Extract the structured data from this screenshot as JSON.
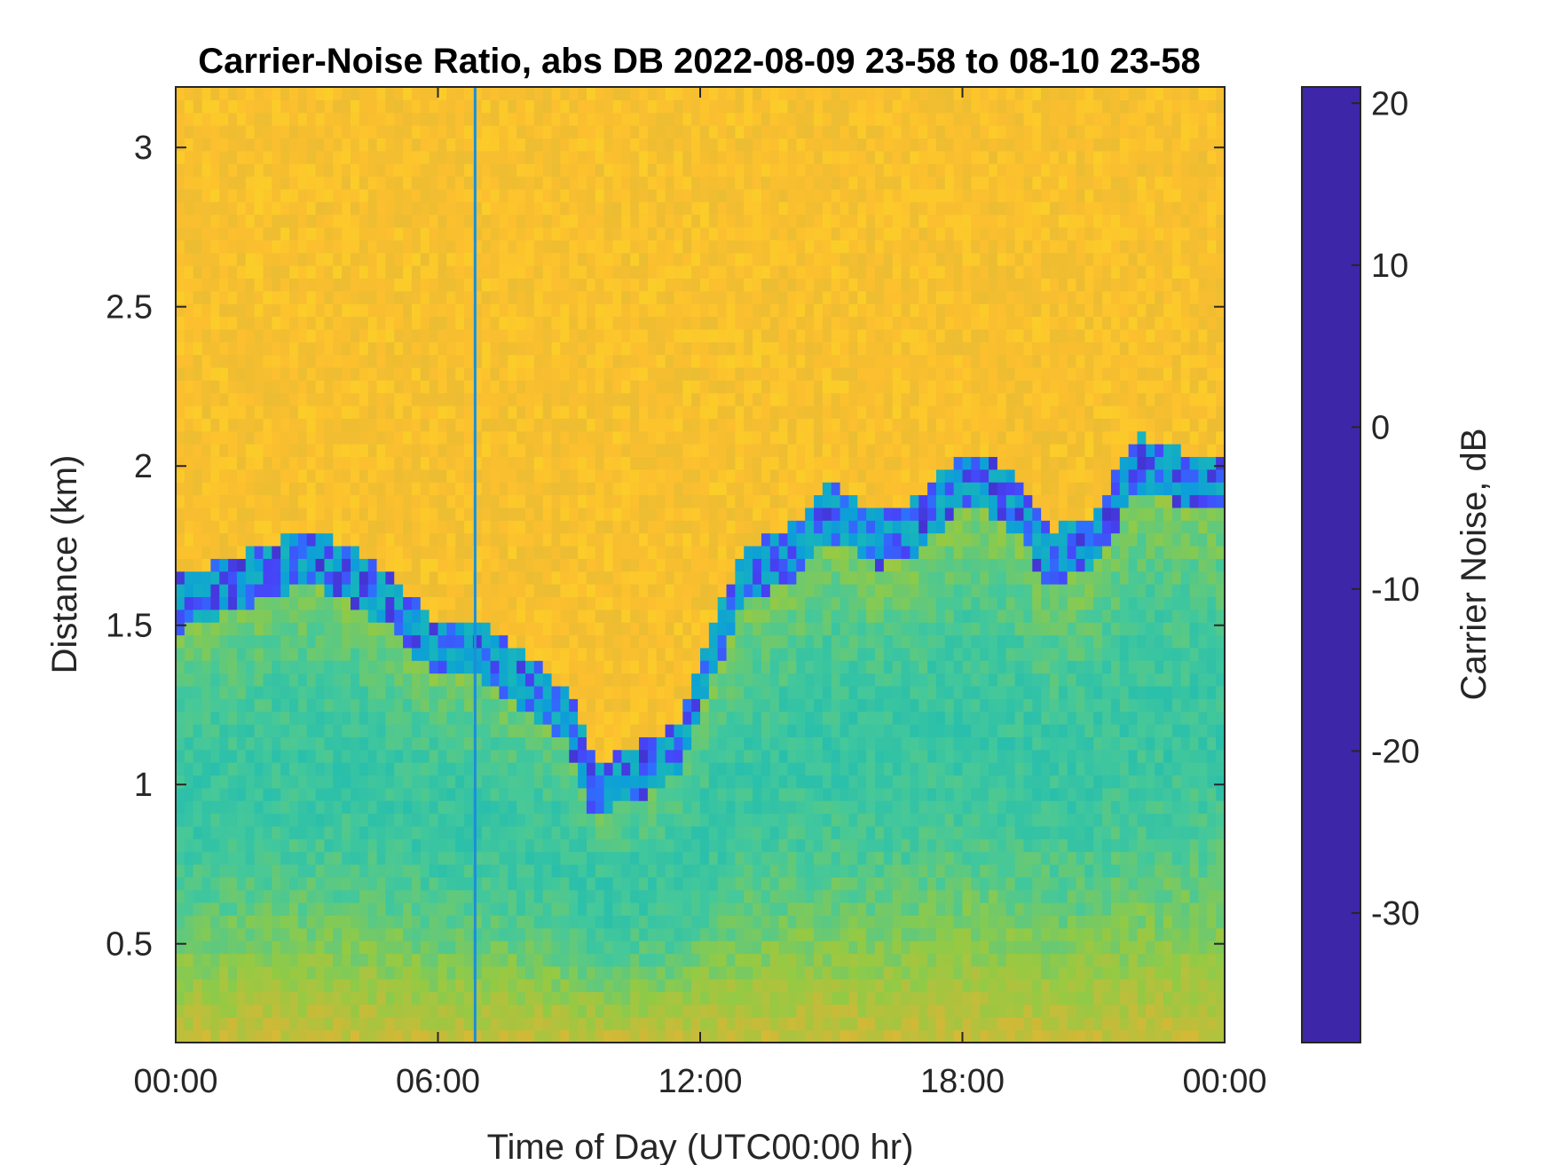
{
  "chart_data": {
    "type": "heatmap",
    "title": "Carrier-Noise Ratio, abs DB 2022-08-09 23-58 to 08-10 23-58",
    "xlabel": "Time of Day (UTC00:00 hr)",
    "ylabel": "Distance (km)",
    "colorbar_label": "Carrier Noise, dB",
    "xlim": [
      0,
      24
    ],
    "ylim": [
      0.19,
      3.19
    ],
    "clim": [
      -38,
      21
    ],
    "x_ticks": [
      0,
      6,
      12,
      18,
      24
    ],
    "x_tick_labels": [
      "00:00",
      "06:00",
      "12:00",
      "18:00",
      "00:00"
    ],
    "y_ticks": [
      0.5,
      1,
      1.5,
      2,
      2.5,
      3
    ],
    "y_tick_labels": [
      "0.5",
      "1",
      "1.5",
      "2",
      "2.5",
      "3"
    ],
    "colorbar_ticks": [
      -30,
      -20,
      -10,
      0,
      10,
      20
    ],
    "colorbar_tick_labels": [
      "-30",
      "-20",
      "-10",
      "0",
      "10",
      "20"
    ],
    "colormap": [
      "#3e26a8",
      "#4743f8",
      "#2d72fd",
      "#0d9fd8",
      "#19bab6",
      "#45c89a",
      "#93ca44",
      "#cfb937",
      "#fcbf2f",
      "#f9fb15"
    ],
    "boundary_layer_top_km": {
      "hours": [
        0,
        1,
        2,
        3,
        4,
        5,
        6,
        7,
        8,
        9,
        9.6,
        10,
        11,
        11.5,
        12,
        13,
        14,
        15,
        16,
        17,
        18,
        19,
        20,
        21,
        22,
        23,
        24
      ],
      "values": [
        1.6,
        1.65,
        1.7,
        1.75,
        1.7,
        1.6,
        1.45,
        1.45,
        1.35,
        1.25,
        1.0,
        1.05,
        1.1,
        1.15,
        1.35,
        1.7,
        1.75,
        1.9,
        1.8,
        1.85,
        2.0,
        1.95,
        1.75,
        1.8,
        2.05,
        2.0,
        2.0
      ]
    },
    "annotation_line_hour": 6.85,
    "grid": false
  }
}
